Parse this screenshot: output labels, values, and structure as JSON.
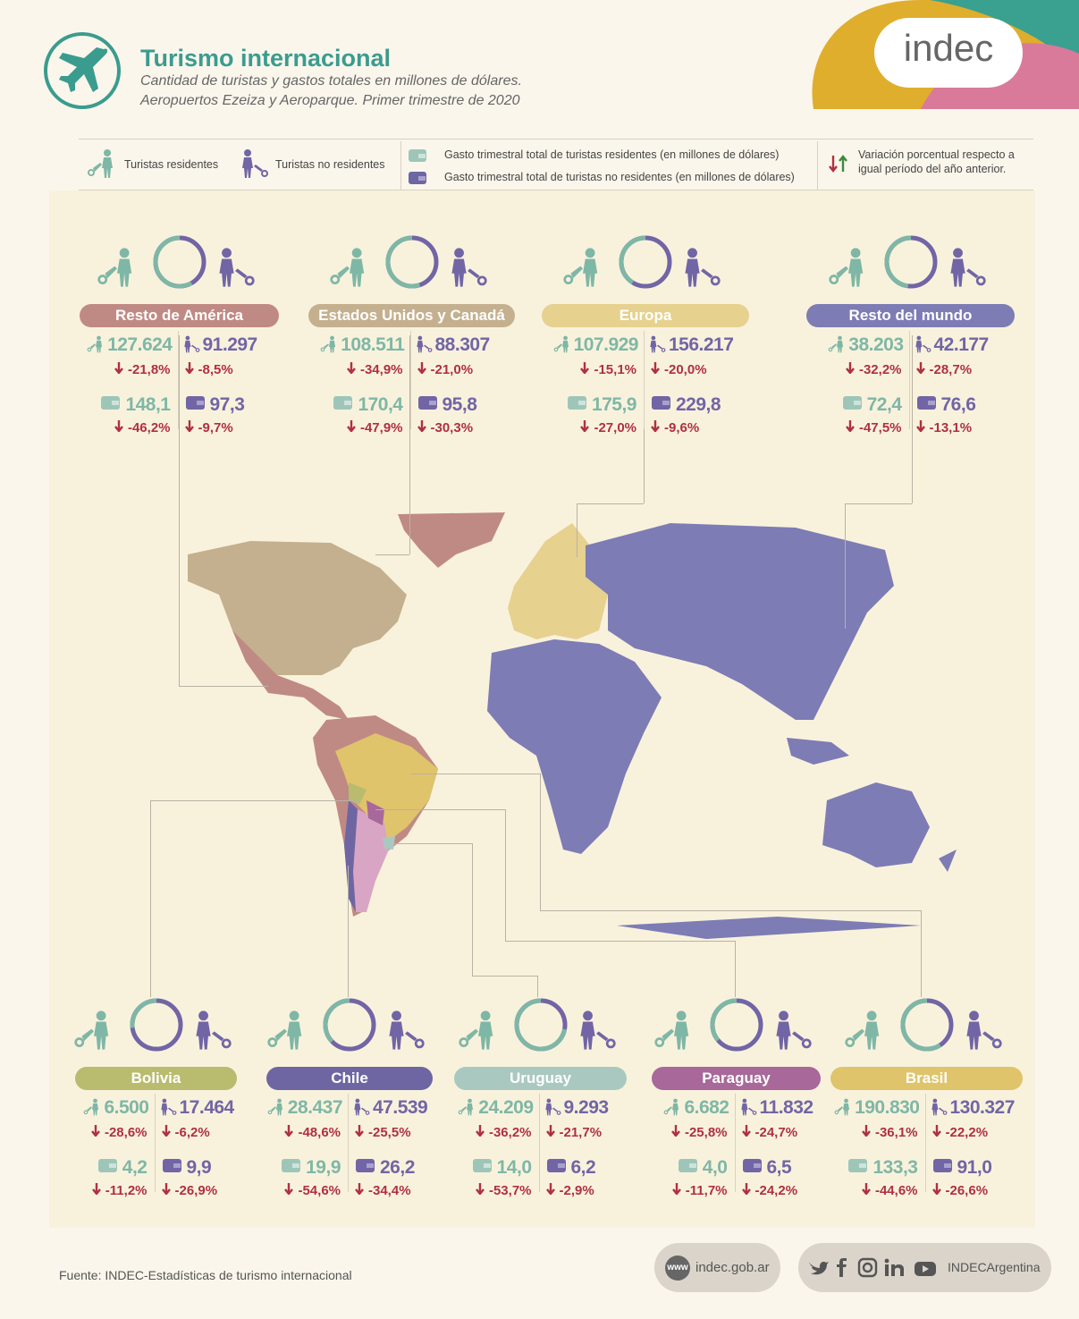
{
  "header": {
    "title": "Turismo internacional",
    "subtitle1": "Cantidad de turistas y gastos totales en millones de dólares.",
    "subtitle2": "Aeropuertos Ezeiza y Aeroparque. Primer trimestre de 2020",
    "logo": "indec"
  },
  "legend": {
    "residents": "Turistas residentes",
    "non_residents": "Turistas no residentes",
    "spend_res": "Gasto trimestral total de turistas residentes (en millones de dólares)",
    "spend_nonres": "Gasto trimestral total de turistas no residentes (en millones de dólares)",
    "variation1": "Variación porcentual respecto a",
    "variation2": "igual período del año anterior."
  },
  "colors": {
    "teal": "#7fb7a6",
    "purple": "#7265a5",
    "down": "#b03040",
    "up": "#3a8a40"
  },
  "chart_data": {
    "type": "table",
    "regions": [
      {
        "name": "Resto de América",
        "color": "#c08a84",
        "res": "127.624",
        "res_var": "-21,8%",
        "nonres": "91.297",
        "nonres_var": "-8,5%",
        "spend_res": "148,1",
        "spend_res_var": "-46,2%",
        "spend_nonres": "97,3",
        "spend_nonres_var": "-9,7%",
        "res_share": 0.58
      },
      {
        "name": "Estados Unidos y Canadá",
        "color": "#c4b08e",
        "res": "108.511",
        "res_var": "-34,9%",
        "nonres": "88.307",
        "nonres_var": "-21,0%",
        "spend_res": "170,4",
        "spend_res_var": "-47,9%",
        "spend_nonres": "95,8",
        "spend_nonres_var": "-30,3%",
        "res_share": 0.55
      },
      {
        "name": "Europa",
        "color": "#e6d18f",
        "res": "107.929",
        "res_var": "-15,1%",
        "nonres": "156.217",
        "nonres_var": "-20,0%",
        "spend_res": "175,9",
        "spend_res_var": "-27,0%",
        "spend_nonres": "229,8",
        "spend_nonres_var": "-9,6%",
        "res_share": 0.41
      },
      {
        "name": "Resto del mundo",
        "color": "#7e7cb4",
        "res": "38.203",
        "res_var": "-32,2%",
        "nonres": "42.177",
        "nonres_var": "-28,7%",
        "spend_res": "72,4",
        "spend_res_var": "-47,5%",
        "spend_nonres": "76,6",
        "spend_nonres_var": "-13,1%",
        "res_share": 0.48
      }
    ],
    "countries": [
      {
        "name": "Bolivia",
        "color": "#b9bb6f",
        "res": "6.500",
        "res_var": "-28,6%",
        "nonres": "17.464",
        "nonres_var": "-6,2%",
        "spend_res": "4,2",
        "spend_res_var": "-11,2%",
        "spend_nonres": "9,9",
        "spend_nonres_var": "-26,9%",
        "res_share": 0.27
      },
      {
        "name": "Chile",
        "color": "#6e66a2",
        "res": "28.437",
        "res_var": "-48,6%",
        "nonres": "47.539",
        "nonres_var": "-25,5%",
        "spend_res": "19,9",
        "spend_res_var": "-54,6%",
        "spend_nonres": "26,2",
        "spend_nonres_var": "-34,4%",
        "res_share": 0.37
      },
      {
        "name": "Uruguay",
        "color": "#a9c9c0",
        "res": "24.209",
        "res_var": "-36,2%",
        "nonres": "9.293",
        "nonres_var": "-21,7%",
        "spend_res": "14,0",
        "spend_res_var": "-53,7%",
        "spend_nonres": "6,2",
        "spend_nonres_var": "-2,9%",
        "res_share": 0.72
      },
      {
        "name": "Paraguay",
        "color": "#a8689a",
        "res": "6.682",
        "res_var": "-25,8%",
        "nonres": "11.832",
        "nonres_var": "-24,7%",
        "spend_res": "4,0",
        "spend_res_var": "-11,7%",
        "spend_nonres": "6,5",
        "spend_nonres_var": "-24,2%",
        "res_share": 0.36
      },
      {
        "name": "Brasil",
        "color": "#dfc46b",
        "res": "190.830",
        "res_var": "-36,1%",
        "nonres": "130.327",
        "nonres_var": "-22,2%",
        "spend_res": "133,3",
        "spend_res_var": "-44,6%",
        "spend_nonres": "91,0",
        "spend_nonres_var": "-26,6%",
        "res_share": 0.59
      }
    ]
  },
  "footer": {
    "source": "Fuente: INDEC-Estadísticas de turismo internacional",
    "web": "indec.gob.ar",
    "www": "www",
    "social": "INDECArgentina"
  }
}
